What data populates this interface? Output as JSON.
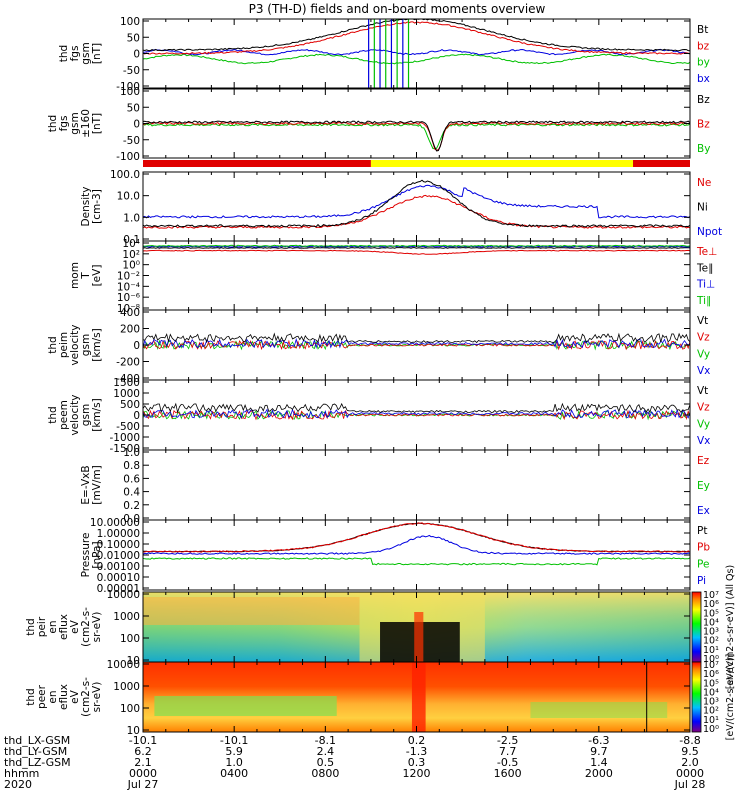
{
  "chart_data": {
    "type": "line",
    "title": "P3 (TH-D) fields and on-board moments overview",
    "colors": {
      "black": "#000000",
      "red": "#e00000",
      "green": "#00c000",
      "blue": "#0000e0",
      "yellow": "#ffff00"
    },
    "panels": [
      {
        "key": "fgs",
        "ylabel": [
          "thd",
          "fgs",
          "gsm",
          "[nT]"
        ],
        "ylim": [
          -100,
          100
        ],
        "yticks": [
          "100",
          "50",
          "0",
          "-50",
          "-100"
        ],
        "series": [
          {
            "name": "Bt",
            "color": "black"
          },
          {
            "name": "bz",
            "color": "red"
          },
          {
            "name": "by",
            "color": "green"
          },
          {
            "name": "bx",
            "color": "blue"
          }
        ]
      },
      {
        "key": "fgs_clip",
        "ylabel": [
          "thd",
          "fgs",
          "gsm",
          "±160",
          "[nT]"
        ],
        "ylim": [
          -120,
          120
        ],
        "yticks": [
          "100",
          "50",
          "0",
          "-50",
          "-100"
        ],
        "series": [
          {
            "name": "Bz",
            "color": "black"
          },
          {
            "name": "Bz",
            "color": "red"
          },
          {
            "name": "By",
            "color": "green"
          }
        ]
      },
      {
        "key": "density",
        "ylabel": [
          "Density",
          "[cm-3]"
        ],
        "log": true,
        "yticks": [
          "100.0",
          "10.0",
          "1.0",
          "0.1"
        ],
        "series": [
          {
            "name": "Ne",
            "color": "red"
          },
          {
            "name": "Ni",
            "color": "black"
          },
          {
            "name": "Npot",
            "color": "blue"
          }
        ]
      },
      {
        "key": "temp",
        "ylabel": [
          "mom",
          "T",
          "[eV]"
        ],
        "log": true,
        "yticks": [
          "10⁴",
          "10²",
          "10⁰",
          "10⁻²",
          "10⁻⁴",
          "10⁻⁶",
          "10⁻⁸"
        ],
        "series": [
          {
            "name": "Te⊥",
            "color": "red"
          },
          {
            "name": "Te∥",
            "color": "black"
          },
          {
            "name": "Ti⊥",
            "color": "blue"
          },
          {
            "name": "Ti∥",
            "color": "green"
          }
        ]
      },
      {
        "key": "peim_v",
        "ylabel": [
          "thd",
          "peim",
          "velocity",
          "gsm",
          "[km/s]"
        ],
        "ylim": [
          -400,
          400
        ],
        "yticks": [
          "400",
          "200",
          "0",
          "-200",
          "-400"
        ],
        "series": [
          {
            "name": "Vt",
            "color": "black"
          },
          {
            "name": "Vz",
            "color": "red"
          },
          {
            "name": "Vy",
            "color": "green"
          },
          {
            "name": "Vx",
            "color": "blue"
          }
        ]
      },
      {
        "key": "peem_v",
        "ylabel": [
          "thd",
          "peem",
          "velocity",
          "gsm",
          "[km/s]"
        ],
        "ylim": [
          -1500,
          1500
        ],
        "yticks": [
          "1500",
          "1000",
          "500",
          "0",
          "-500",
          "-1000",
          "-1500"
        ],
        "series": [
          {
            "name": "Vt",
            "color": "black"
          },
          {
            "name": "Vz",
            "color": "red"
          },
          {
            "name": "Vy",
            "color": "green"
          },
          {
            "name": "Vx",
            "color": "blue"
          }
        ]
      },
      {
        "key": "efield",
        "ylabel": [
          "E=-VxB",
          "[mV/m]"
        ],
        "ylim": [
          0,
          1
        ],
        "yticks": [
          "1.0",
          "0.8",
          "0.6",
          "0.4",
          "0.2",
          "0.0"
        ],
        "series": [
          {
            "name": "Ez",
            "color": "red"
          },
          {
            "name": "Ey",
            "color": "green"
          },
          {
            "name": "Ex",
            "color": "blue"
          }
        ]
      },
      {
        "key": "pressure",
        "ylabel": [
          "Pressure",
          "[nPa]"
        ],
        "log": true,
        "yticks": [
          "10.00000",
          "1.00000",
          "0.10000",
          "0.01000",
          "0.00100",
          "0.00010",
          "0.00001"
        ],
        "series": [
          {
            "name": "Pt",
            "color": "black"
          },
          {
            "name": "Pb",
            "color": "red"
          },
          {
            "name": "Pe",
            "color": "green"
          },
          {
            "name": "Pi",
            "color": "blue"
          }
        ]
      },
      {
        "key": "peir",
        "ylabel": [
          "thd",
          "peir",
          "en",
          "eflux",
          "eV",
          "(cm2-s-",
          "sr-eV)"
        ],
        "log": true,
        "yticks": [
          "10000",
          "1000",
          "100",
          "10"
        ],
        "spectrogram": true
      },
      {
        "key": "peer",
        "ylabel": [
          "thd",
          "peer",
          "en",
          "eflux",
          "eV",
          "(cm2-s-",
          "sr-eV)"
        ],
        "log": true,
        "yticks": [
          "10000",
          "1000",
          "100",
          "10"
        ],
        "spectrogram": true
      }
    ],
    "colorbar": {
      "label_upper": "[eV/(cm2-s-sr-eV)] (All Qs)",
      "label_lower": "[eV/(cm2-s-sr-eV)]",
      "ticks_upper": [
        "10⁷",
        "10⁶",
        "10⁵",
        "10⁴",
        "10³",
        "10²",
        "10¹",
        "10⁰"
      ],
      "ticks_lower": [
        "10⁷",
        "10⁶",
        "10⁵",
        "10⁴",
        "10³",
        "10²",
        "10¹",
        "10⁰"
      ]
    },
    "xaxis": {
      "row_labels": [
        "thd_LX-GSM",
        "thd_LY-GSM",
        "thd_LZ-GSM",
        "hhmm",
        "2020"
      ],
      "columns": [
        {
          "lx": "-10.1",
          "ly": "6.2",
          "lz": "2.1",
          "hhmm": "0000",
          "date": "Jul 27"
        },
        {
          "lx": "-10.1",
          "ly": "5.9",
          "lz": "1.0",
          "hhmm": "0400",
          "date": ""
        },
        {
          "lx": "-8.1",
          "ly": "2.4",
          "lz": "0.5",
          "hhmm": "0800",
          "date": ""
        },
        {
          "lx": "0.2",
          "ly": "-1.3",
          "lz": "0.3",
          "hhmm": "1200",
          "date": ""
        },
        {
          "lx": "-2.5",
          "ly": "7.7",
          "lz": "-0.5",
          "hhmm": "1600",
          "date": ""
        },
        {
          "lx": "-6.3",
          "ly": "9.7",
          "lz": "1.4",
          "hhmm": "2000",
          "date": ""
        },
        {
          "lx": "-8.8",
          "ly": "9.5",
          "lz": "2.0",
          "hhmm": "0000",
          "date": "Jul 28"
        }
      ]
    },
    "mode_bar": [
      {
        "from": "0000",
        "to": "1000",
        "color": "red"
      },
      {
        "from": "1000",
        "to": "2130",
        "color": "yellow"
      },
      {
        "from": "2130",
        "to": "2400",
        "color": "red"
      }
    ]
  }
}
